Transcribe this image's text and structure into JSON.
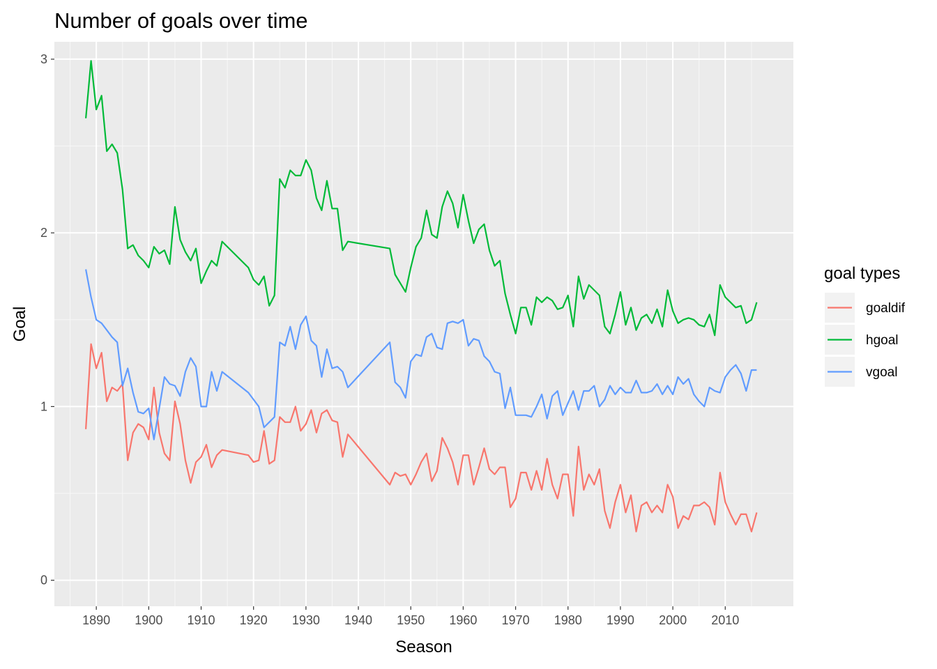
{
  "chart_data": {
    "type": "line",
    "title": "Number of goals over time",
    "xlabel": "Season",
    "ylabel": "Goal",
    "xlim": [
      1882,
      2023
    ],
    "ylim": [
      -0.15,
      3.1
    ],
    "x_ticks": [
      1890,
      1900,
      1910,
      1920,
      1930,
      1940,
      1950,
      1960,
      1970,
      1980,
      1990,
      2000,
      2010
    ],
    "y_ticks": [
      0,
      1,
      2,
      3
    ],
    "grid": true,
    "legend": {
      "title": "goal types",
      "position": "right"
    },
    "x": [
      1888,
      1889,
      1890,
      1891,
      1892,
      1893,
      1894,
      1895,
      1896,
      1897,
      1898,
      1899,
      1900,
      1901,
      1902,
      1903,
      1904,
      1905,
      1906,
      1907,
      1908,
      1909,
      1910,
      1911,
      1912,
      1913,
      1914,
      1919,
      1920,
      1921,
      1922,
      1923,
      1924,
      1925,
      1926,
      1927,
      1928,
      1929,
      1930,
      1931,
      1932,
      1933,
      1934,
      1935,
      1936,
      1937,
      1938,
      1946,
      1947,
      1948,
      1949,
      1950,
      1951,
      1952,
      1953,
      1954,
      1955,
      1956,
      1957,
      1958,
      1959,
      1960,
      1961,
      1962,
      1963,
      1964,
      1965,
      1966,
      1967,
      1968,
      1969,
      1970,
      1971,
      1972,
      1973,
      1974,
      1975,
      1976,
      1977,
      1978,
      1979,
      1980,
      1981,
      1982,
      1983,
      1984,
      1985,
      1986,
      1987,
      1988,
      1989,
      1990,
      1991,
      1992,
      1993,
      1994,
      1995,
      1996,
      1997,
      1998,
      1999,
      2000,
      2001,
      2002,
      2003,
      2004,
      2005,
      2006,
      2007,
      2008,
      2009,
      2010,
      2011,
      2012,
      2013,
      2014,
      2015,
      2016
    ],
    "series": [
      {
        "name": "goaldif",
        "color": "#F8766D",
        "values": [
          0.87,
          1.36,
          1.22,
          1.31,
          1.03,
          1.11,
          1.09,
          1.13,
          0.69,
          0.85,
          0.9,
          0.88,
          0.81,
          1.11,
          0.85,
          0.73,
          0.69,
          1.03,
          0.9,
          0.69,
          0.56,
          0.68,
          0.71,
          0.78,
          0.65,
          0.72,
          0.75,
          0.72,
          0.68,
          0.69,
          0.86,
          0.67,
          0.69,
          0.94,
          0.91,
          0.91,
          1.0,
          0.86,
          0.9,
          0.98,
          0.85,
          0.96,
          0.98,
          0.92,
          0.91,
          0.71,
          0.84,
          0.55,
          0.62,
          0.6,
          0.61,
          0.55,
          0.61,
          0.68,
          0.73,
          0.57,
          0.63,
          0.82,
          0.76,
          0.68,
          0.55,
          0.72,
          0.72,
          0.55,
          0.65,
          0.76,
          0.64,
          0.61,
          0.65,
          0.65,
          0.42,
          0.47,
          0.62,
          0.62,
          0.52,
          0.63,
          0.52,
          0.7,
          0.55,
          0.47,
          0.61,
          0.61,
          0.37,
          0.77,
          0.52,
          0.61,
          0.55,
          0.64,
          0.4,
          0.3,
          0.45,
          0.55,
          0.39,
          0.49,
          0.28,
          0.43,
          0.45,
          0.39,
          0.43,
          0.39,
          0.55,
          0.48,
          0.3,
          0.37,
          0.35,
          0.43,
          0.43,
          0.45,
          0.42,
          0.32,
          0.62,
          0.45,
          0.38,
          0.32,
          0.38,
          0.38,
          0.28,
          0.39
        ]
      },
      {
        "name": "hgoal",
        "color": "#00BA38",
        "values": [
          2.66,
          2.99,
          2.71,
          2.79,
          2.47,
          2.51,
          2.46,
          2.25,
          1.91,
          1.93,
          1.87,
          1.84,
          1.8,
          1.92,
          1.88,
          1.9,
          1.82,
          2.15,
          1.96,
          1.89,
          1.84,
          1.91,
          1.71,
          1.78,
          1.84,
          1.81,
          1.95,
          1.8,
          1.73,
          1.7,
          1.75,
          1.58,
          1.64,
          2.31,
          2.26,
          2.36,
          2.33,
          2.33,
          2.42,
          2.36,
          2.2,
          2.13,
          2.3,
          2.14,
          2.14,
          1.9,
          1.95,
          1.91,
          1.76,
          1.71,
          1.66,
          1.8,
          1.92,
          1.97,
          2.13,
          1.99,
          1.97,
          2.15,
          2.24,
          2.17,
          2.03,
          2.22,
          2.07,
          1.94,
          2.02,
          2.05,
          1.9,
          1.81,
          1.84,
          1.65,
          1.53,
          1.42,
          1.57,
          1.57,
          1.47,
          1.63,
          1.6,
          1.63,
          1.61,
          1.56,
          1.57,
          1.64,
          1.46,
          1.75,
          1.62,
          1.7,
          1.67,
          1.64,
          1.46,
          1.42,
          1.53,
          1.66,
          1.47,
          1.57,
          1.44,
          1.51,
          1.53,
          1.48,
          1.56,
          1.46,
          1.67,
          1.55,
          1.48,
          1.5,
          1.51,
          1.5,
          1.47,
          1.46,
          1.53,
          1.41,
          1.7,
          1.63,
          1.6,
          1.57,
          1.58,
          1.48,
          1.5,
          1.6
        ]
      },
      {
        "name": "vgoal",
        "color": "#619CFF",
        "values": [
          1.79,
          1.63,
          1.5,
          1.48,
          1.44,
          1.4,
          1.37,
          1.12,
          1.22,
          1.08,
          0.97,
          0.96,
          0.99,
          0.81,
          0.99,
          1.17,
          1.13,
          1.12,
          1.06,
          1.2,
          1.28,
          1.23,
          1.0,
          1.0,
          1.2,
          1.09,
          1.2,
          1.08,
          1.04,
          1.0,
          0.88,
          0.91,
          0.94,
          1.37,
          1.35,
          1.46,
          1.33,
          1.47,
          1.52,
          1.38,
          1.35,
          1.17,
          1.33,
          1.22,
          1.23,
          1.2,
          1.11,
          1.37,
          1.14,
          1.11,
          1.05,
          1.26,
          1.3,
          1.29,
          1.4,
          1.42,
          1.34,
          1.33,
          1.48,
          1.49,
          1.48,
          1.5,
          1.35,
          1.39,
          1.38,
          1.29,
          1.26,
          1.2,
          1.19,
          0.99,
          1.11,
          0.95,
          0.95,
          0.95,
          0.94,
          1.0,
          1.07,
          0.93,
          1.06,
          1.09,
          0.95,
          1.02,
          1.09,
          0.98,
          1.09,
          1.09,
          1.12,
          1.0,
          1.04,
          1.12,
          1.07,
          1.11,
          1.08,
          1.08,
          1.15,
          1.08,
          1.08,
          1.09,
          1.13,
          1.07,
          1.12,
          1.07,
          1.17,
          1.13,
          1.16,
          1.07,
          1.03,
          1.0,
          1.11,
          1.09,
          1.08,
          1.17,
          1.21,
          1.24,
          1.19,
          1.09,
          1.21,
          1.21
        ]
      }
    ]
  }
}
